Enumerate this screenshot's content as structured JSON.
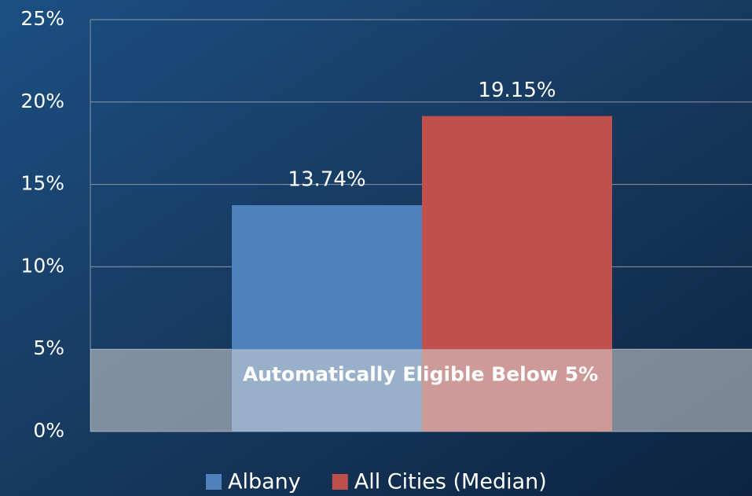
{
  "chart_data": {
    "type": "bar",
    "categories": [
      null
    ],
    "series": [
      {
        "name": "Albany",
        "color": "#4f81bd",
        "values": [
          13.74
        ],
        "value_labels": [
          "13.74%"
        ]
      },
      {
        "name": "All Cities (Median)",
        "color": "#c0504d",
        "values": [
          19.15
        ],
        "value_labels": [
          "19.15%"
        ]
      }
    ],
    "ylim": [
      0,
      25
    ],
    "yticks": [
      {
        "value": 0,
        "label": "0%"
      },
      {
        "value": 5,
        "label": "5%"
      },
      {
        "value": 10,
        "label": "10%"
      },
      {
        "value": 15,
        "label": "15%"
      },
      {
        "value": 20,
        "label": "20%"
      },
      {
        "value": 25,
        "label": "25%"
      }
    ],
    "grid": true,
    "legend": "bottom",
    "annotations": [
      {
        "text": "Automatically Eligible Below 5%",
        "y": 5
      }
    ]
  }
}
